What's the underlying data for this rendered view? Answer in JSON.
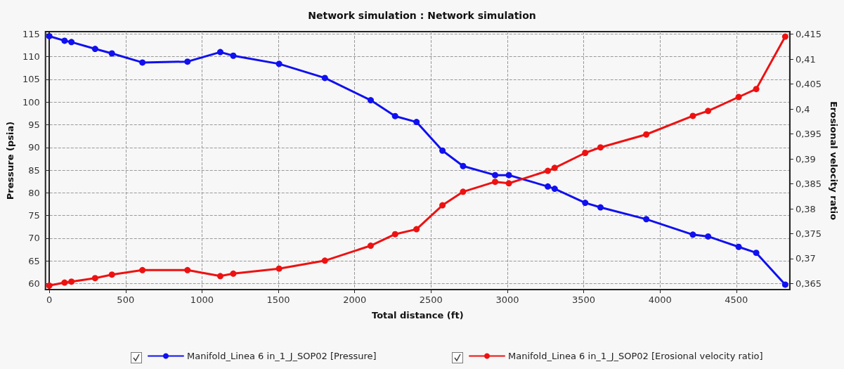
{
  "chart_data": {
    "type": "line",
    "title": "Network simulation : Network simulation",
    "xlabel": "Total distance (ft)",
    "ylabel": "Pressure (psia)",
    "y2label": "Erosional velocity ratio",
    "x": [
      0,
      100,
      145,
      300,
      410,
      610,
      905,
      1120,
      1205,
      1505,
      1805,
      2105,
      2265,
      2405,
      2575,
      2710,
      2920,
      3010,
      3265,
      3310,
      3510,
      3610,
      3910,
      4215,
      4315,
      4515,
      4630,
      4820
    ],
    "series": [
      {
        "name": "Manifold_Linea 6 in_1_J_SOP02 [Pressure]",
        "color": "#1010f0",
        "values": [
          114.5,
          113.5,
          113.2,
          111.7,
          110.7,
          108.7,
          108.9,
          111.0,
          110.2,
          108.4,
          105.3,
          100.4,
          96.9,
          95.6,
          89.3,
          85.9,
          83.9,
          83.9,
          81.4,
          80.9,
          77.8,
          76.8,
          74.2,
          70.8,
          70.4,
          68.1,
          66.8,
          59.8
        ]
      },
      {
        "name": "Manifold_Linea 6 in_1_J_SOP02 [Erosional velocity ratio]",
        "color": "#ee1111",
        "axis": "y2",
        "values": [
          0.3646,
          0.3652,
          0.3654,
          0.3661,
          0.3668,
          0.3677,
          0.3677,
          0.3665,
          0.367,
          0.368,
          0.3696,
          0.3726,
          0.3749,
          0.3759,
          0.3807,
          0.3834,
          0.3854,
          0.3851,
          0.3876,
          0.3882,
          0.3912,
          0.3923,
          0.3949,
          0.3986,
          0.3996,
          0.4024,
          0.404,
          0.4145
        ]
      }
    ],
    "xlim": [
      -25,
      4850
    ],
    "xticks": [
      0,
      500,
      1000,
      1500,
      2000,
      2500,
      3000,
      3500,
      4000,
      4500
    ],
    "ylim": [
      58.7,
      115.5
    ],
    "yticks": [
      60,
      65,
      70,
      75,
      80,
      85,
      90,
      95,
      100,
      105,
      110,
      115
    ],
    "y2lim": [
      0.3638,
      0.4155
    ],
    "y2ticks": [
      {
        "value": 0.365,
        "label": "0,365"
      },
      {
        "value": 0.37,
        "label": "0,37"
      },
      {
        "value": 0.375,
        "label": "0,375"
      },
      {
        "value": 0.38,
        "label": "0,38"
      },
      {
        "value": 0.385,
        "label": "0,385"
      },
      {
        "value": 0.39,
        "label": "0,39"
      },
      {
        "value": 0.395,
        "label": "0,395"
      },
      {
        "value": 0.4,
        "label": "0,4"
      },
      {
        "value": 0.405,
        "label": "0,405"
      },
      {
        "value": 0.41,
        "label": "0,41"
      },
      {
        "value": 0.415,
        "label": "0,415"
      }
    ],
    "grid": true,
    "legend": "bottom",
    "marker": "circle",
    "line_style": "solid"
  }
}
